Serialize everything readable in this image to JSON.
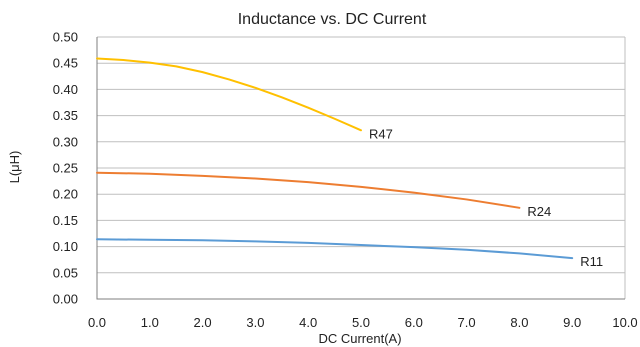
{
  "chart_data": {
    "type": "line",
    "title": "Inductance vs. DC Current",
    "xlabel": "DC Current(A)",
    "ylabel": "L(μH)",
    "xlim": [
      0,
      10
    ],
    "ylim": [
      0,
      0.5
    ],
    "x_ticks": [
      "0.0",
      "1.0",
      "2.0",
      "3.0",
      "4.0",
      "5.0",
      "6.0",
      "7.0",
      "8.0",
      "9.0",
      "10.0"
    ],
    "y_ticks": [
      "0.00",
      "0.05",
      "0.10",
      "0.15",
      "0.20",
      "0.25",
      "0.30",
      "0.35",
      "0.40",
      "0.45",
      "0.50"
    ],
    "grid": "horizontal",
    "legend": "none",
    "series": [
      {
        "name": "R47",
        "color": "#FFC000",
        "x": [
          0,
          0.5,
          1,
          1.5,
          2,
          2.5,
          3,
          3.5,
          4,
          4.5,
          5
        ],
        "y": [
          0.459,
          0.456,
          0.451,
          0.444,
          0.433,
          0.419,
          0.403,
          0.385,
          0.365,
          0.344,
          0.322
        ]
      },
      {
        "name": "R24",
        "color": "#ED7D31",
        "x": [
          0,
          1,
          2,
          3,
          4,
          5,
          6,
          7,
          8
        ],
        "y": [
          0.241,
          0.239,
          0.235,
          0.23,
          0.223,
          0.214,
          0.203,
          0.19,
          0.174
        ]
      },
      {
        "name": "R11",
        "color": "#5B9BD5",
        "x": [
          0,
          1,
          2,
          3,
          4,
          5,
          6,
          7,
          8,
          9
        ],
        "y": [
          0.114,
          0.113,
          0.112,
          0.11,
          0.107,
          0.103,
          0.099,
          0.094,
          0.087,
          0.078
        ]
      }
    ]
  }
}
